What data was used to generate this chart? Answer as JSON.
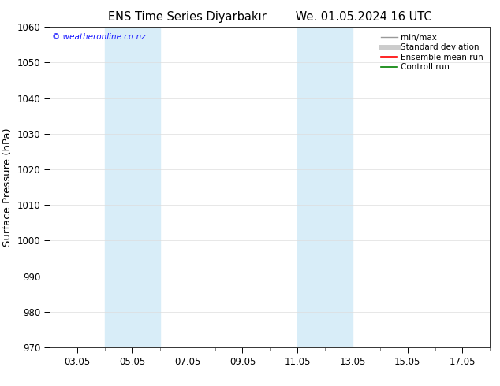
{
  "title_left": "ENS Time Series Diyarbakır",
  "title_right": "We. 01.05.2024 16 UTC",
  "ylabel": "Surface Pressure (hPa)",
  "ylim": [
    970,
    1060
  ],
  "yticks": [
    970,
    980,
    990,
    1000,
    1010,
    1020,
    1030,
    1040,
    1050,
    1060
  ],
  "xtick_labels": [
    "03.05",
    "05.05",
    "07.05",
    "09.05",
    "11.05",
    "13.05",
    "15.05",
    "17.05"
  ],
  "xtick_positions": [
    3,
    5,
    7,
    9,
    11,
    13,
    15,
    17
  ],
  "x_min": 2.0,
  "x_max": 18.0,
  "shaded_bands": [
    {
      "x_start": 4.0,
      "x_end": 6.0,
      "color": "#d8edf8"
    },
    {
      "x_start": 11.0,
      "x_end": 13.0,
      "color": "#d8edf8"
    }
  ],
  "watermark_text": "© weatheronline.co.nz",
  "watermark_color": "#1a1aff",
  "legend_entries": [
    {
      "label": "min/max",
      "color": "#999999",
      "lw": 1.0
    },
    {
      "label": "Standard deviation",
      "color": "#cccccc",
      "lw": 5.0
    },
    {
      "label": "Ensemble mean run",
      "color": "#ff0000",
      "lw": 1.2
    },
    {
      "label": "Controll run",
      "color": "#008000",
      "lw": 1.2
    }
  ],
  "background_color": "#ffffff",
  "axes_bg_color": "#ffffff",
  "spine_color": "#333333",
  "grid_color": "#dddddd",
  "tick_label_fontsize": 8.5,
  "axis_label_fontsize": 9.5,
  "title_fontsize": 10.5,
  "legend_fontsize": 7.5
}
